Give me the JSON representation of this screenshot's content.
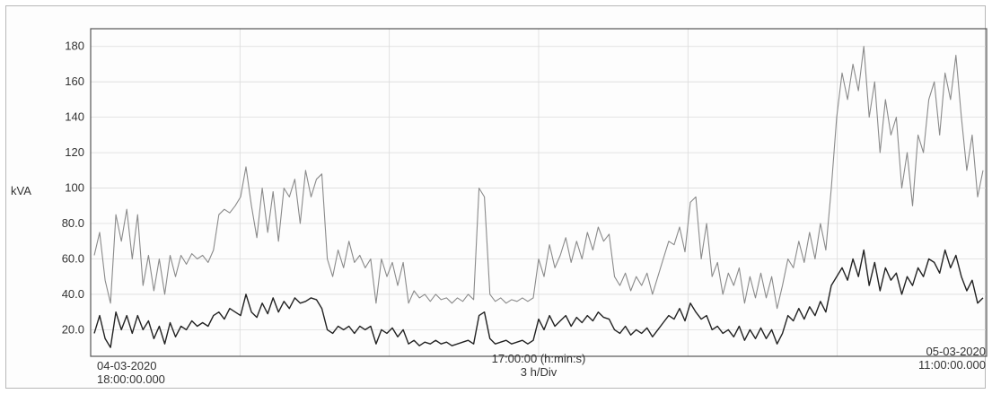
{
  "chart_data": {
    "type": "line",
    "title": "",
    "ylabel": "kVA",
    "ylim": [
      5,
      190
    ],
    "yticks": [
      "20.0",
      "40.0",
      "60.0",
      "80.0",
      "100",
      "120",
      "140",
      "160",
      "180"
    ],
    "ytick_values": [
      20,
      40,
      60,
      80,
      100,
      120,
      140,
      160,
      180
    ],
    "xlabel": "17:00:00 (h:min:s)",
    "x_division": "3 h/Div",
    "x_start_date": "04-03-2020",
    "x_start_time": "18:00:00.000",
    "x_end_date": "05-03-2020",
    "x_end_time": "11:00:00.000",
    "grid": true,
    "legend": "none",
    "colors": {
      "upper_series": "#8a8a8a",
      "lower_series": "#222222",
      "grid": "#dcdcdc"
    },
    "series": [
      {
        "values": [
          62,
          75,
          48,
          35,
          85,
          70,
          88,
          60,
          85,
          45,
          62,
          42,
          60,
          40,
          62,
          50,
          62,
          57,
          63,
          60,
          62,
          58,
          65,
          85,
          88,
          86,
          90,
          95,
          112,
          90,
          72,
          100,
          75,
          98,
          70,
          100,
          95,
          105,
          80,
          110,
          95,
          105,
          108,
          60,
          50,
          65,
          55,
          70,
          58,
          62,
          55,
          60,
          35,
          60,
          50,
          58,
          45,
          58,
          35,
          42,
          38,
          40,
          36,
          40,
          37,
          38,
          35,
          38,
          36,
          40,
          37,
          100,
          95,
          40,
          36,
          38,
          35,
          37,
          36,
          38,
          36,
          38,
          60,
          50,
          68,
          55,
          62,
          72,
          58,
          70,
          60,
          75,
          65,
          78,
          70,
          74,
          50,
          45,
          52,
          42,
          50,
          45,
          52,
          40,
          50,
          60,
          70,
          68,
          78,
          64,
          92,
          95,
          60,
          80,
          50,
          58,
          40,
          52,
          45,
          55,
          35,
          50,
          38,
          52,
          38,
          50,
          32,
          45,
          60,
          55,
          70,
          58,
          75,
          60,
          80,
          65,
          100,
          140,
          165,
          150,
          170,
          155,
          180,
          140,
          160,
          120,
          150,
          130,
          140,
          100,
          120,
          90,
          130,
          120,
          150,
          160,
          130,
          165,
          150,
          175,
          140,
          110,
          130,
          95,
          110
        ]
      },
      {
        "values": [
          18,
          28,
          15,
          10,
          30,
          20,
          28,
          18,
          28,
          20,
          25,
          15,
          22,
          12,
          24,
          16,
          22,
          20,
          25,
          22,
          24,
          22,
          28,
          30,
          26,
          32,
          30,
          28,
          40,
          30,
          27,
          35,
          29,
          38,
          30,
          36,
          32,
          38,
          35,
          36,
          38,
          37,
          32,
          20,
          18,
          22,
          20,
          22,
          18,
          22,
          20,
          22,
          12,
          20,
          18,
          21,
          16,
          20,
          12,
          14,
          11,
          13,
          12,
          14,
          12,
          13,
          11,
          12,
          13,
          14,
          12,
          28,
          30,
          15,
          12,
          13,
          14,
          12,
          13,
          14,
          12,
          14,
          26,
          20,
          28,
          22,
          25,
          28,
          22,
          27,
          24,
          28,
          25,
          30,
          27,
          26,
          20,
          18,
          22,
          17,
          20,
          18,
          21,
          16,
          20,
          24,
          28,
          26,
          32,
          25,
          35,
          30,
          26,
          28,
          20,
          22,
          18,
          20,
          16,
          22,
          14,
          20,
          15,
          21,
          15,
          20,
          12,
          18,
          28,
          25,
          32,
          26,
          33,
          28,
          36,
          30,
          45,
          50,
          55,
          48,
          60,
          50,
          65,
          45,
          58,
          42,
          55,
          48,
          52,
          40,
          50,
          45,
          55,
          50,
          60,
          58,
          52,
          65,
          55,
          62,
          50,
          42,
          48,
          35,
          38
        ]
      }
    ]
  }
}
